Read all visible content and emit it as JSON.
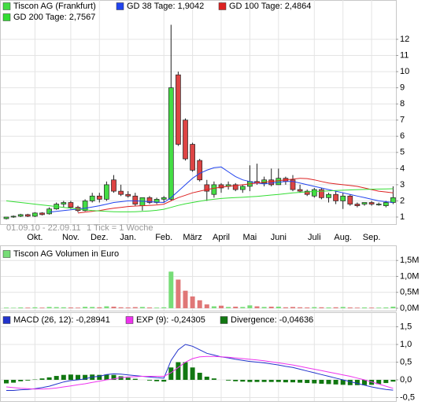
{
  "chart_data": [
    {
      "type": "candlestick",
      "name": "Tiscon AG (Frankfurt)",
      "color": "#44dd44",
      "down_color": "#dd4444",
      "categories": [
        null,
        null,
        null,
        null,
        "Okt.",
        null,
        null,
        null,
        null,
        "Nov.",
        null,
        null,
        null,
        "Dez.",
        null,
        null,
        null,
        "Jan.",
        null,
        null,
        null,
        null,
        "Feb.",
        null,
        null,
        null,
        "März",
        null,
        null,
        null,
        "April",
        null,
        null,
        null,
        "Mai",
        null,
        null,
        null,
        "Juni",
        null,
        null,
        null,
        null,
        "Juli",
        null,
        null,
        null,
        "Aug.",
        null,
        null,
        null,
        "Sep.",
        null,
        null,
        null
      ],
      "open": [
        0.9,
        1.0,
        1.05,
        1.15,
        1.05,
        1.25,
        1.2,
        1.5,
        1.8,
        1.9,
        1.6,
        1.4,
        2.0,
        2.3,
        2.1,
        3.3,
        2.6,
        2.4,
        2.3,
        1.7,
        2.2,
        1.9,
        2.1,
        2.1,
        9.8,
        7.0,
        5.5,
        4.5,
        3.0,
        2.4,
        3.0,
        2.9,
        3.0,
        2.7,
        2.9,
        3.2,
        3.1,
        3.3,
        3.0,
        3.4,
        3.3,
        2.7,
        2.6,
        2.3,
        2.7,
        2.2,
        2.4,
        2.0,
        2.3,
        1.8,
        1.8,
        1.9,
        1.8,
        1.7,
        1.9
      ],
      "high": [
        1.0,
        1.1,
        1.2,
        1.2,
        1.3,
        1.3,
        1.6,
        1.9,
        2.0,
        2.0,
        1.7,
        2.1,
        2.5,
        2.5,
        3.2,
        3.6,
        3.0,
        2.6,
        2.5,
        2.2,
        2.3,
        2.2,
        2.3,
        12.9,
        10.0,
        7.1,
        5.6,
        4.6,
        3.3,
        3.2,
        3.1,
        3.2,
        3.1,
        3.0,
        4.2,
        4.3,
        3.5,
        4.0,
        4.0,
        3.5,
        3.6,
        3.0,
        2.7,
        2.8,
        2.8,
        2.5,
        2.6,
        2.5,
        2.4,
        1.9,
        1.9,
        2.0,
        1.9,
        2.0,
        2.9
      ],
      "low": [
        0.85,
        0.95,
        1.0,
        1.0,
        1.0,
        1.1,
        1.15,
        1.45,
        1.6,
        1.5,
        1.3,
        1.35,
        1.9,
        1.9,
        2.0,
        2.5,
        2.3,
        2.2,
        1.7,
        1.4,
        1.8,
        1.8,
        1.9,
        2.0,
        5.4,
        4.5,
        3.8,
        3.2,
        2.0,
        2.2,
        2.5,
        2.7,
        2.6,
        2.5,
        2.6,
        3.0,
        2.9,
        2.9,
        3.0,
        3.0,
        2.6,
        2.5,
        2.3,
        2.2,
        2.1,
        1.9,
        1.8,
        1.5,
        1.7,
        1.6,
        1.7,
        1.7,
        1.7,
        1.6,
        1.8
      ],
      "close": [
        1.0,
        1.05,
        1.15,
        1.05,
        1.25,
        1.15,
        1.5,
        1.8,
        1.9,
        1.6,
        1.4,
        2.0,
        2.3,
        2.1,
        3.0,
        2.6,
        2.4,
        2.3,
        1.8,
        2.2,
        1.9,
        2.1,
        2.2,
        9.0,
        5.5,
        4.6,
        3.9,
        3.3,
        2.6,
        3.0,
        2.8,
        3.0,
        2.7,
        2.9,
        3.2,
        3.1,
        3.3,
        3.0,
        3.4,
        3.2,
        2.7,
        2.6,
        2.4,
        2.7,
        2.2,
        2.4,
        2.0,
        2.3,
        1.8,
        1.7,
        1.9,
        1.8,
        1.8,
        1.9,
        2.2
      ],
      "lines": [
        {
          "name": "GD 38 Tage: 1,9042",
          "color": "#2244ee",
          "values": [
            null,
            null,
            null,
            null,
            null,
            null,
            1.3,
            1.35,
            1.4,
            1.45,
            1.5,
            1.55,
            1.62,
            1.7,
            1.8,
            1.9,
            1.95,
            2.0,
            2.0,
            1.98,
            1.95,
            1.92,
            1.9,
            2.2,
            2.6,
            3.0,
            3.4,
            3.7,
            3.9,
            4.05,
            4.1,
            3.8,
            3.5,
            3.3,
            3.2,
            3.1,
            3.05,
            3.1,
            3.15,
            3.2,
            3.2,
            3.1,
            3.0,
            2.9,
            2.8,
            2.7,
            2.6,
            2.5,
            2.4,
            2.3,
            2.2,
            2.1,
            2.0,
            1.95,
            1.9
          ]
        },
        {
          "name": "GD 100 Tage: 2,4864",
          "color": "#dd2222",
          "values": [
            null,
            null,
            null,
            null,
            null,
            null,
            null,
            null,
            null,
            null,
            1.25,
            1.3,
            1.35,
            1.4,
            1.48,
            1.55,
            1.6,
            1.65,
            1.68,
            1.7,
            1.72,
            1.75,
            1.8,
            2.0,
            2.2,
            2.35,
            2.5,
            2.6,
            2.7,
            2.78,
            2.85,
            2.9,
            2.95,
            3.0,
            3.05,
            3.1,
            3.15,
            3.2,
            3.25,
            3.3,
            3.35,
            3.4,
            3.38,
            3.3,
            3.2,
            3.1,
            3.05,
            3.0,
            2.95,
            2.9,
            2.8,
            2.7,
            2.6,
            2.55,
            2.5
          ]
        },
        {
          "name": "GD 200 Tage: 2,7567",
          "color": "#33dd33",
          "values": [
            2.0,
            1.95,
            1.9,
            1.85,
            1.8,
            1.75,
            1.7,
            1.65,
            1.6,
            1.55,
            1.5,
            1.45,
            1.4,
            1.38,
            1.35,
            1.33,
            1.32,
            1.32,
            1.33,
            1.35,
            1.38,
            1.42,
            1.48,
            1.6,
            1.72,
            1.82,
            1.9,
            1.98,
            2.05,
            2.1,
            2.15,
            2.18,
            2.2,
            2.22,
            2.25,
            2.28,
            2.32,
            2.36,
            2.4,
            2.45,
            2.5,
            2.53,
            2.56,
            2.58,
            2.6,
            2.62,
            2.64,
            2.66,
            2.68,
            2.7,
            2.71,
            2.72,
            2.73,
            2.74,
            2.75
          ]
        }
      ],
      "ylim": [
        0.61,
        13.07
      ],
      "yticks": [
        1,
        2,
        3,
        4,
        5,
        6,
        7,
        8,
        9,
        10,
        11,
        12
      ],
      "grid": true,
      "annotations": [
        "01.09.10 - 22.09.11",
        "1 Tick = 1 Woche"
      ]
    },
    {
      "type": "bar",
      "title": "Tiscon AG Volumen in Euro",
      "color": "#77dd77",
      "down_color": "#e07777",
      "values": [
        20000,
        15000,
        25000,
        20000,
        30000,
        20000,
        40000,
        35000,
        30000,
        25000,
        20000,
        45000,
        40000,
        30000,
        60000,
        50000,
        30000,
        25000,
        35000,
        40000,
        25000,
        20000,
        30000,
        1150000,
        900000,
        550000,
        370000,
        250000,
        120000,
        60000,
        80000,
        40000,
        50000,
        40000,
        90000,
        60000,
        40000,
        50000,
        50000,
        30000,
        40000,
        30000,
        25000,
        35000,
        30000,
        25000,
        30000,
        40000,
        25000,
        20000,
        25000,
        20000,
        20000,
        25000,
        50000
      ],
      "ylim": [
        -75000,
        1950000
      ],
      "yticks": [
        {
          "value": 0,
          "label": "0,0M"
        },
        {
          "value": 500000,
          "label": "0,5M"
        },
        {
          "value": 1000000,
          "label": "1,0M"
        },
        {
          "value": 1500000,
          "label": "1,5M"
        }
      ],
      "grid": true
    },
    {
      "type": "line",
      "ylim": [
        -0.6,
        1.89
      ],
      "yticks": [
        {
          "value": -0.5,
          "label": "-0,5"
        },
        {
          "value": 0,
          "label": "0,0"
        },
        {
          "value": 0.5,
          "label": "0,5"
        },
        {
          "value": 1.0,
          "label": "1,0"
        },
        {
          "value": 1.5,
          "label": "1,5"
        }
      ],
      "grid": true,
      "series": [
        {
          "name": "MACD (26, 12): -0,28941",
          "color": "#2233cc",
          "values": [
            -0.3,
            -0.3,
            -0.28,
            -0.27,
            -0.25,
            -0.22,
            -0.18,
            -0.12,
            -0.06,
            -0.02,
            0.0,
            0.03,
            0.08,
            0.1,
            0.15,
            0.17,
            0.16,
            0.14,
            0.12,
            0.1,
            0.08,
            0.06,
            0.05,
            0.55,
            0.85,
            1.0,
            0.95,
            0.85,
            0.75,
            0.7,
            0.65,
            0.62,
            0.58,
            0.55,
            0.52,
            0.5,
            0.48,
            0.45,
            0.42,
            0.38,
            0.35,
            0.3,
            0.25,
            0.2,
            0.15,
            0.1,
            0.05,
            0.0,
            -0.05,
            -0.1,
            -0.15,
            -0.2,
            -0.24,
            -0.27,
            -0.29
          ]
        },
        {
          "name": "EXP (9): -0,24305",
          "color": "#ee33ee",
          "values": [
            -0.2,
            -0.22,
            -0.24,
            -0.25,
            -0.26,
            -0.26,
            -0.25,
            -0.23,
            -0.2,
            -0.17,
            -0.14,
            -0.11,
            -0.07,
            -0.04,
            0.0,
            0.03,
            0.06,
            0.08,
            0.09,
            0.1,
            0.1,
            0.1,
            0.1,
            0.2,
            0.35,
            0.5,
            0.6,
            0.65,
            0.66,
            0.66,
            0.65,
            0.64,
            0.62,
            0.6,
            0.58,
            0.56,
            0.54,
            0.51,
            0.48,
            0.45,
            0.42,
            0.38,
            0.34,
            0.3,
            0.26,
            0.22,
            0.18,
            0.14,
            0.1,
            0.05,
            0.0,
            -0.06,
            -0.12,
            -0.18,
            -0.24
          ]
        },
        {
          "name": "Divergence: -0,04636",
          "color": "#117711",
          "type": "bar",
          "values": [
            -0.1,
            -0.08,
            -0.04,
            -0.02,
            0.01,
            0.04,
            0.07,
            0.11,
            0.14,
            0.15,
            0.14,
            0.14,
            0.15,
            0.14,
            0.15,
            0.14,
            0.1,
            0.06,
            0.03,
            0.0,
            -0.02,
            -0.04,
            -0.05,
            0.35,
            0.5,
            0.5,
            0.35,
            0.2,
            0.09,
            0.04,
            0.0,
            -0.02,
            -0.04,
            -0.05,
            -0.06,
            -0.06,
            -0.06,
            -0.06,
            -0.06,
            -0.07,
            -0.07,
            -0.08,
            -0.09,
            -0.1,
            -0.11,
            -0.12,
            -0.13,
            -0.14,
            -0.15,
            -0.15,
            -0.15,
            -0.14,
            -0.12,
            -0.09,
            -0.05
          ]
        }
      ]
    }
  ]
}
